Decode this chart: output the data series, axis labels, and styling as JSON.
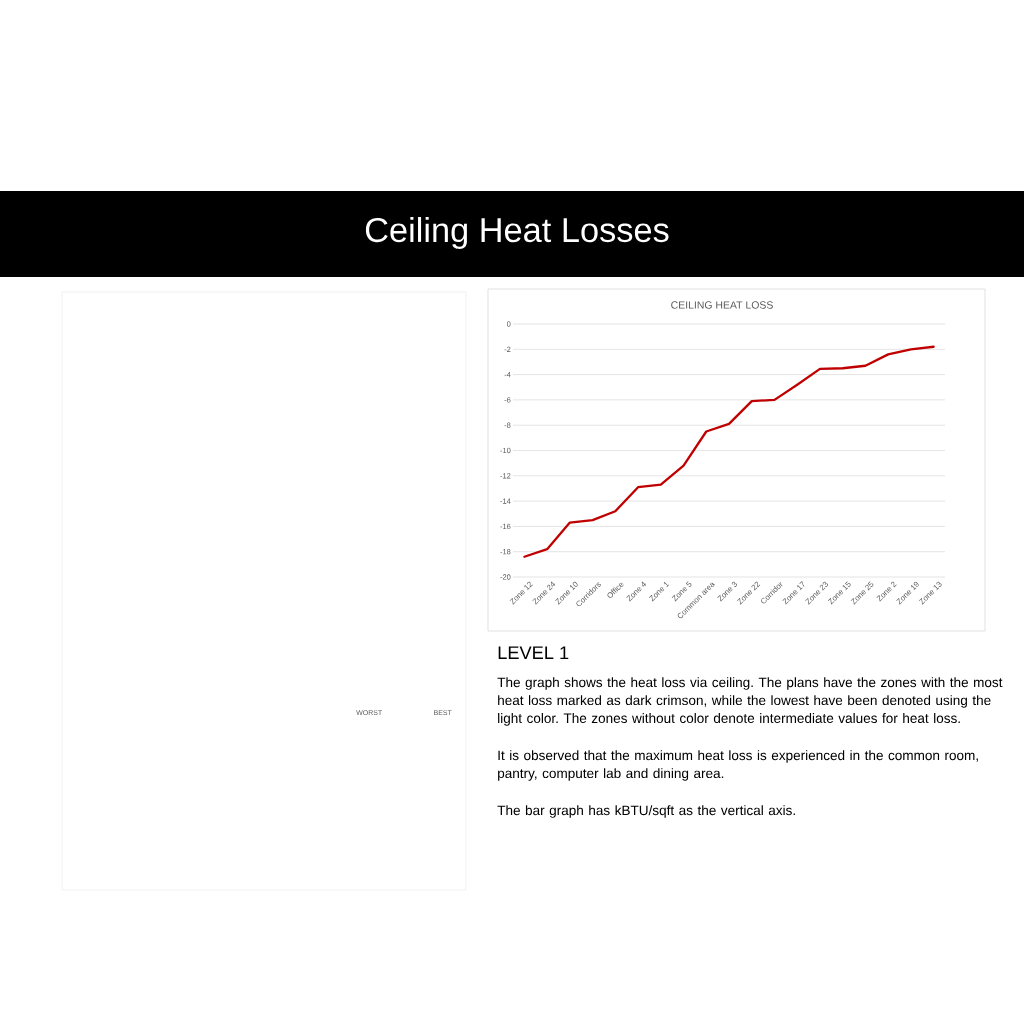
{
  "chart_data": {
    "type": "line",
    "title": "Ceiling Heat Losses",
    "subtitle": "CEILING HEAT LOSS",
    "categories": [
      "Zone 12",
      "Zone 24",
      "Zone 10",
      "Corridors",
      "Office",
      "Zone 4",
      "Zone 1",
      "Zone 5",
      "Common area",
      "Zone 3",
      "Zone 22",
      "Corridor",
      "Zone 17",
      "Zone 23",
      "Zone 15",
      "Zone 25",
      "Zone 2",
      "Zone 19",
      "Zone 13"
    ],
    "values": [
      -18.4,
      -17.8,
      -15.7,
      -15.5,
      -14.8,
      -12.9,
      -12.7,
      -11.2,
      -8.5,
      -7.9,
      -6.1,
      -6.0,
      -4.8,
      -3.55,
      -3.5,
      -3.3,
      -2.4,
      -2.0,
      -1.8
    ],
    "color": "#c00000",
    "ylim": [
      -20,
      0
    ],
    "yticks": [
      -20,
      -18,
      -16,
      -14,
      -12,
      -10,
      -8,
      -6,
      -4,
      -2,
      0
    ],
    "grid": "y",
    "annotations": [
      "LEVEL 1",
      "The graph shows the heat loss via ceiling. The plans have the zones with the most heat loss marked as dark crimson, while the lowest have been denoted using the light color. The zones without color denote intermediate values for heat loss.",
      "It is observed that the maximum heat loss is experienced in the common room, pantry, computer lab and dining area.",
      "The bar graph has kBTU/sqft as the vertical axis.",
      "WORST",
      "BEST"
    ]
  }
}
